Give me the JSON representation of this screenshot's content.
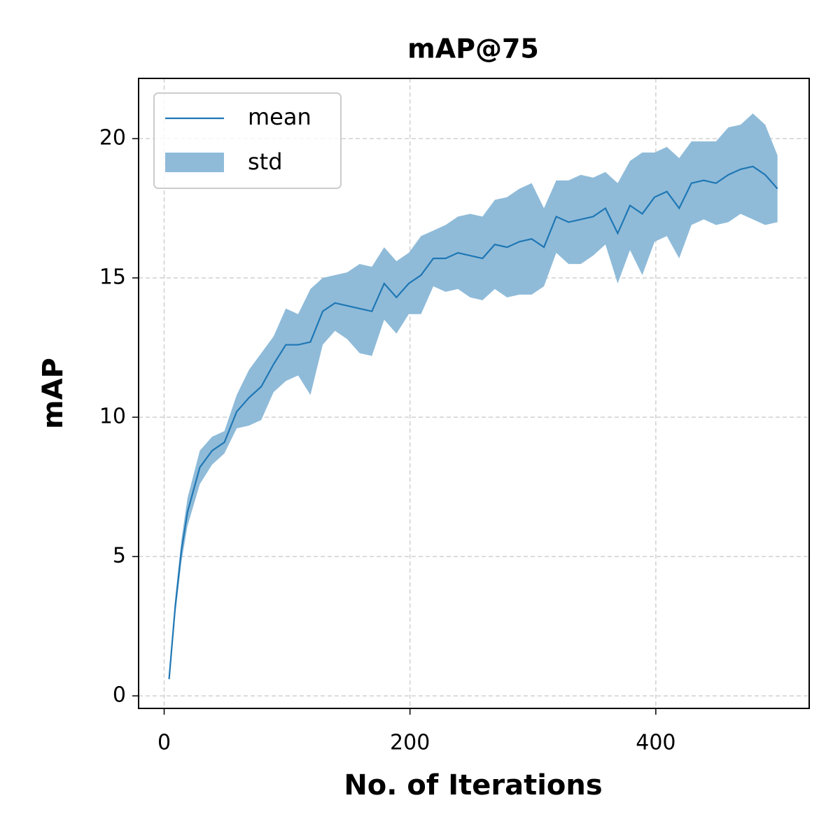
{
  "chart_data": {
    "type": "line",
    "title": "mAP@75",
    "x_label": "No. of Iterations",
    "y_label": "mAP",
    "x": [
      4,
      9,
      14,
      19,
      29,
      39,
      49,
      59,
      69,
      79,
      89,
      99,
      109,
      119,
      129,
      139,
      149,
      159,
      169,
      179,
      189,
      199,
      209,
      219,
      229,
      239,
      249,
      259,
      269,
      279,
      289,
      299,
      309,
      319,
      329,
      339,
      349,
      359,
      369,
      379,
      389,
      399,
      409,
      419,
      429,
      439,
      449,
      459,
      469,
      479,
      489,
      499
    ],
    "series": [
      {
        "name": "mean",
        "color": "#1f77b4",
        "values": [
          0.6,
          3.2,
          5.2,
          6.6,
          8.2,
          8.8,
          9.1,
          10.2,
          10.7,
          11.1,
          11.9,
          12.6,
          12.6,
          12.7,
          13.8,
          14.1,
          14.0,
          13.9,
          13.8,
          14.8,
          14.3,
          14.8,
          15.1,
          15.7,
          15.7,
          15.9,
          15.8,
          15.7,
          16.2,
          16.1,
          16.3,
          16.4,
          16.1,
          17.2,
          17.0,
          17.1,
          17.2,
          17.5,
          16.6,
          17.6,
          17.3,
          17.9,
          18.1,
          17.5,
          18.4,
          18.5,
          18.4,
          18.7,
          18.9,
          19.0,
          18.7,
          18.2
        ]
      },
      {
        "name": "std",
        "color": "#8fbbd9",
        "values": [
          0.05,
          0.3,
          0.4,
          0.5,
          0.6,
          0.5,
          0.4,
          0.6,
          1.0,
          1.2,
          1.0,
          1.3,
          1.1,
          1.9,
          1.2,
          1.0,
          1.2,
          1.6,
          1.6,
          1.3,
          1.3,
          1.1,
          1.4,
          1.0,
          1.2,
          1.3,
          1.5,
          1.5,
          1.6,
          1.8,
          1.9,
          2.0,
          1.4,
          1.3,
          1.5,
          1.6,
          1.4,
          1.3,
          1.8,
          1.6,
          2.2,
          1.6,
          1.6,
          1.8,
          1.5,
          1.4,
          1.5,
          1.7,
          1.6,
          1.9,
          1.8,
          1.2
        ]
      }
    ],
    "xlim": [
      -20.8,
      524.8
    ],
    "xticks": [
      0,
      200,
      400
    ],
    "ylim": [
      -0.45,
      22.16
    ],
    "yticks": [
      0,
      5,
      10,
      15,
      20
    ],
    "grid": true,
    "legend": "upper-left"
  }
}
